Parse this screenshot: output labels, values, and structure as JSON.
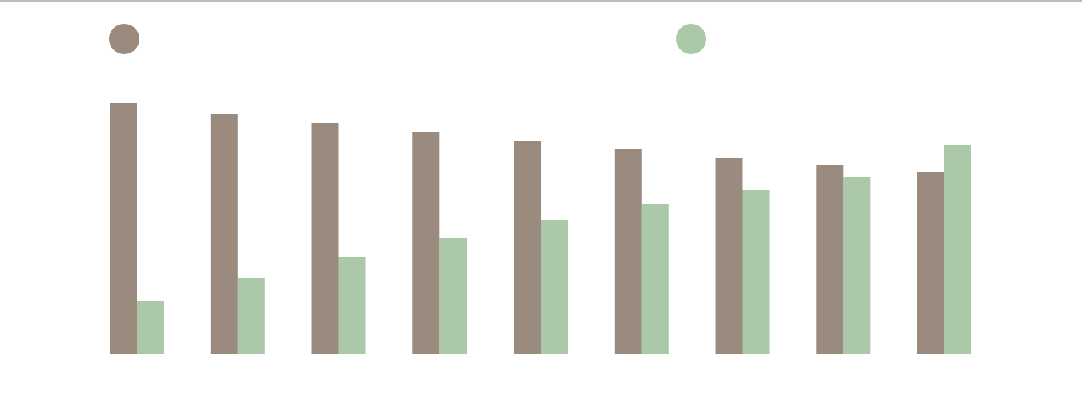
{
  "chart_data": {
    "type": "bar",
    "categories": [
      "",
      "",
      "",
      "",
      "",
      "",
      "",
      "",
      ""
    ],
    "series": [
      {
        "values": [
          316,
          302,
          291,
          279,
          268,
          258,
          247,
          237,
          229
        ],
        "color": "#9b8a7e"
      },
      {
        "values": [
          67,
          96,
          122,
          146,
          168,
          189,
          206,
          222,
          263
        ],
        "color": "#abc9a9"
      }
    ],
    "ylim": [
      0,
      330
    ],
    "grid": false,
    "legend": "top",
    "title": "",
    "xlabel": "",
    "ylabel": ""
  }
}
